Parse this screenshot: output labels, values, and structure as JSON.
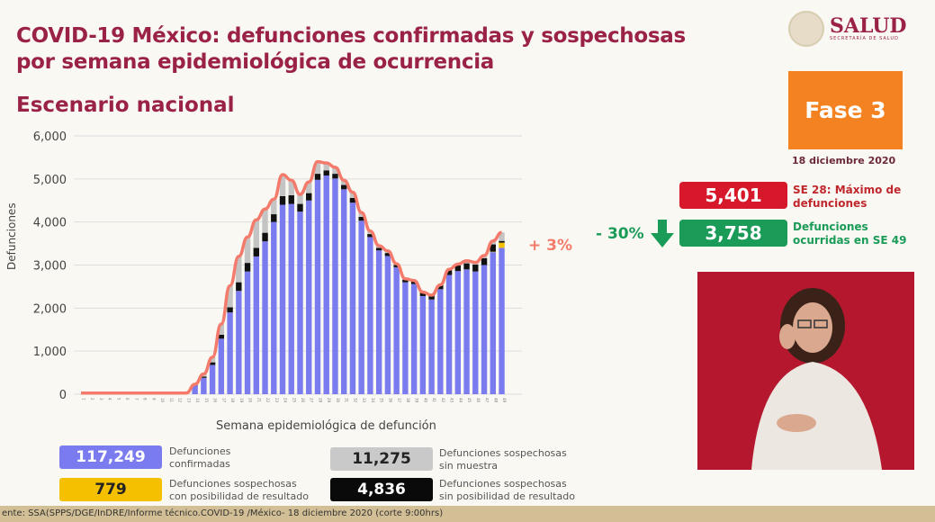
{
  "header": {
    "title_line1": "COVID-19 México: defunciones confirmadas y sospechosas",
    "title_line2": "por semana epidemiológica de ocurrencia",
    "subtitle": "Escenario nacional",
    "logo_text": "SALUD",
    "logo_subtext": "SECRETARÍA DE SALUD"
  },
  "side": {
    "fase": "Fase 3",
    "date": "18 diciembre 2020",
    "max_value": "5,401",
    "max_label": "SE 28: Máximo de defunciones",
    "current_value": "3,758",
    "current_label": "Defunciones ocurridas en SE 49",
    "change": "- 30%",
    "colors": {
      "red": "#d7182a",
      "green": "#1a9b57",
      "orange": "#f58220"
    }
  },
  "chart_data": {
    "type": "bar",
    "stacked": true,
    "xlabel": "Semana epidemiológica de defunción",
    "ylabel": "Defunciones",
    "ylim": [
      0,
      6000
    ],
    "yticks": [
      "0",
      "1,000",
      "2,000",
      "3,000",
      "4,000",
      "5,000",
      "6,000"
    ],
    "grid": true,
    "weeks": [
      1,
      2,
      3,
      4,
      5,
      6,
      7,
      8,
      9,
      10,
      11,
      12,
      13,
      14,
      15,
      16,
      17,
      18,
      19,
      20,
      21,
      22,
      23,
      24,
      25,
      26,
      27,
      28,
      29,
      30,
      31,
      32,
      33,
      34,
      35,
      36,
      37,
      38,
      39,
      40,
      41,
      42,
      43,
      44,
      45,
      46,
      47,
      48,
      49
    ],
    "series": [
      {
        "name": "Defunciones confirmadas",
        "color": "#7b7bf0",
        "values": [
          0,
          0,
          0,
          0,
          0,
          0,
          0,
          0,
          0,
          0,
          0,
          0,
          0,
          200,
          380,
          680,
          1290,
          1900,
          2400,
          2850,
          3200,
          3550,
          4000,
          4400,
          4420,
          4240,
          4500,
          4980,
          5080,
          5010,
          4760,
          4450,
          4030,
          3650,
          3340,
          3210,
          2950,
          2600,
          2560,
          2280,
          2200,
          2440,
          2770,
          2860,
          2900,
          2850,
          3000,
          3300,
          3400
        ]
      },
      {
        "name": "Defunciones sospechosas con posibilidad de resultado",
        "color": "#f5c000",
        "values": [
          0,
          0,
          0,
          0,
          0,
          0,
          0,
          0,
          0,
          0,
          0,
          0,
          0,
          0,
          0,
          0,
          0,
          0,
          0,
          0,
          0,
          0,
          0,
          0,
          0,
          0,
          0,
          0,
          0,
          0,
          0,
          0,
          0,
          0,
          0,
          0,
          0,
          0,
          0,
          0,
          0,
          0,
          0,
          0,
          0,
          0,
          0,
          10,
          120
        ]
      },
      {
        "name": "Defunciones sospechosas sin posibilidad de resultado",
        "color": "#111111",
        "values": [
          0,
          0,
          0,
          0,
          0,
          0,
          0,
          0,
          0,
          0,
          0,
          0,
          0,
          10,
          30,
          60,
          90,
          120,
          200,
          200,
          200,
          200,
          180,
          200,
          200,
          180,
          170,
          140,
          120,
          110,
          100,
          110,
          90,
          70,
          60,
          70,
          50,
          60,
          70,
          80,
          90,
          90,
          110,
          130,
          140,
          160,
          160,
          170,
          40
        ]
      },
      {
        "name": "Defunciones sospechosas sin muestra",
        "color": "#c4c4c4",
        "values": [
          0,
          0,
          0,
          0,
          0,
          0,
          0,
          0,
          0,
          0,
          0,
          0,
          0,
          20,
          60,
          120,
          250,
          500,
          600,
          600,
          650,
          550,
          350,
          500,
          350,
          220,
          260,
          281,
          170,
          150,
          110,
          130,
          100,
          70,
          50,
          50,
          30,
          20,
          10,
          10,
          10,
          10,
          20,
          30,
          60,
          50,
          60,
          80,
          198
        ]
      }
    ],
    "trend_line_color": "#f47b6b",
    "annotation": "+ 3%"
  },
  "legend": [
    {
      "value": "117,249",
      "label_line1": "Defunciones",
      "label_line2": "confirmadas",
      "bg": "#7b7bf0",
      "fg": "#ffffff"
    },
    {
      "value": "11,275",
      "label_line1": "Defunciones sospechosas",
      "label_line2": "sin muestra",
      "bg": "#c9c9c9",
      "fg": "#222222"
    },
    {
      "value": "779",
      "label_line1": "Defunciones sospechosas",
      "label_line2": "con posibilidad de resultado",
      "bg": "#f5c000",
      "fg": "#222222"
    },
    {
      "value": "4,836",
      "label_line1": "Defunciones sospechosas",
      "label_line2": "sin posibilidad de resultado",
      "bg": "#0a0a0a",
      "fg": "#ffffff"
    }
  ],
  "footer": "ente: SSA(SPPS/DGE/InDRE/Informe técnico.COVID-19 /México- 18 diciembre 2020 (corte 9:00hrs)"
}
